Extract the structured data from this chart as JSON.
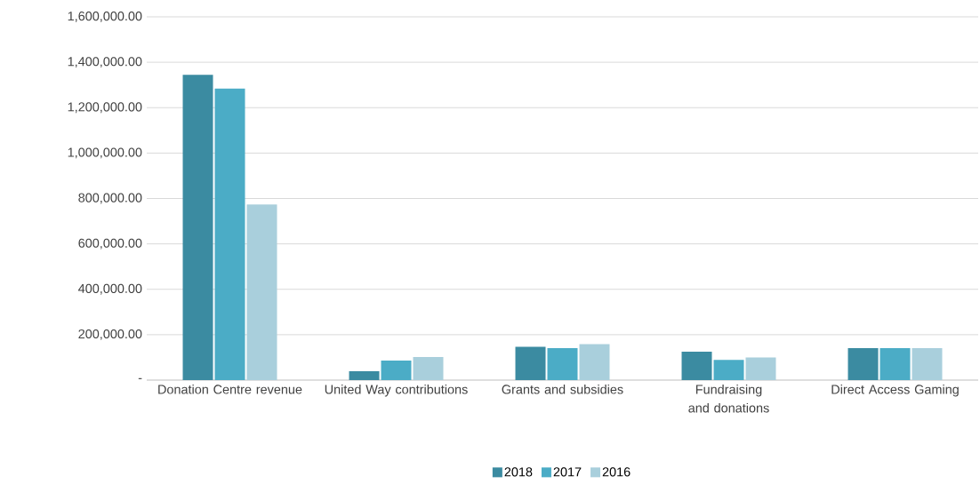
{
  "chart_data": {
    "type": "bar",
    "categories": [
      "Donation Centre revenue",
      "United Way contributions",
      "Grants and subsidies",
      "Fundraising and donations",
      "Direct Access Gaming"
    ],
    "series": [
      {
        "name": "2018",
        "color": "#3b8ba1",
        "values": [
          1345000,
          39000,
          147000,
          125000,
          141000
        ]
      },
      {
        "name": "2017",
        "color": "#4bacc6",
        "values": [
          1284000,
          86000,
          141000,
          89000,
          141000
        ]
      },
      {
        "name": "2016",
        "color": "#a9cfdc",
        "values": [
          774000,
          102000,
          158000,
          100000,
          141000
        ]
      }
    ],
    "ylim": [
      0,
      1600000
    ],
    "yticks": [
      {
        "value": 0,
        "label": "-"
      },
      {
        "value": 200000,
        "label": "200,000.00"
      },
      {
        "value": 400000,
        "label": "400,000.00"
      },
      {
        "value": 600000,
        "label": "600,000.00"
      },
      {
        "value": 800000,
        "label": "800,000.00"
      },
      {
        "value": 1000000,
        "label": "1,000,000.00"
      },
      {
        "value": 1200000,
        "label": "1,200,000.00"
      },
      {
        "value": 1400000,
        "label": "1,400,000.00"
      },
      {
        "value": 1600000,
        "label": "1,600,000.00"
      }
    ],
    "grid": "y",
    "legend": "bottom"
  }
}
